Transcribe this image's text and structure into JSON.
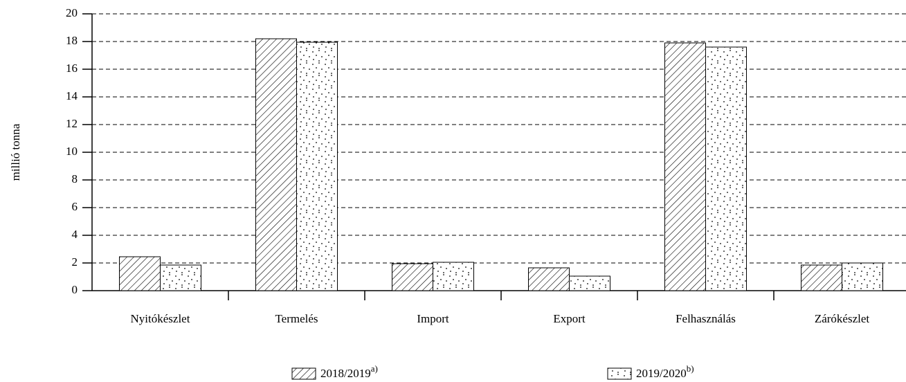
{
  "chart_data": {
    "type": "bar",
    "y_label": "millió tonna",
    "categories": [
      "Nyitókészlet",
      "Termelés",
      "Import",
      "Export",
      "Felhasználás",
      "Zárókészlet"
    ],
    "series": [
      {
        "name": "2018/2019",
        "footnote": "a)",
        "pattern": "hatch",
        "values": [
          2.45,
          18.2,
          1.95,
          1.65,
          17.9,
          1.85
        ]
      },
      {
        "name": "2019/2020",
        "footnote": "b)",
        "pattern": "dots",
        "values": [
          1.85,
          17.95,
          2.05,
          1.05,
          17.6,
          2.0
        ]
      }
    ],
    "ylim": [
      0,
      20
    ],
    "yticks": [
      0,
      2,
      4,
      6,
      8,
      10,
      12,
      14,
      16,
      18,
      20
    ],
    "grid": true
  }
}
